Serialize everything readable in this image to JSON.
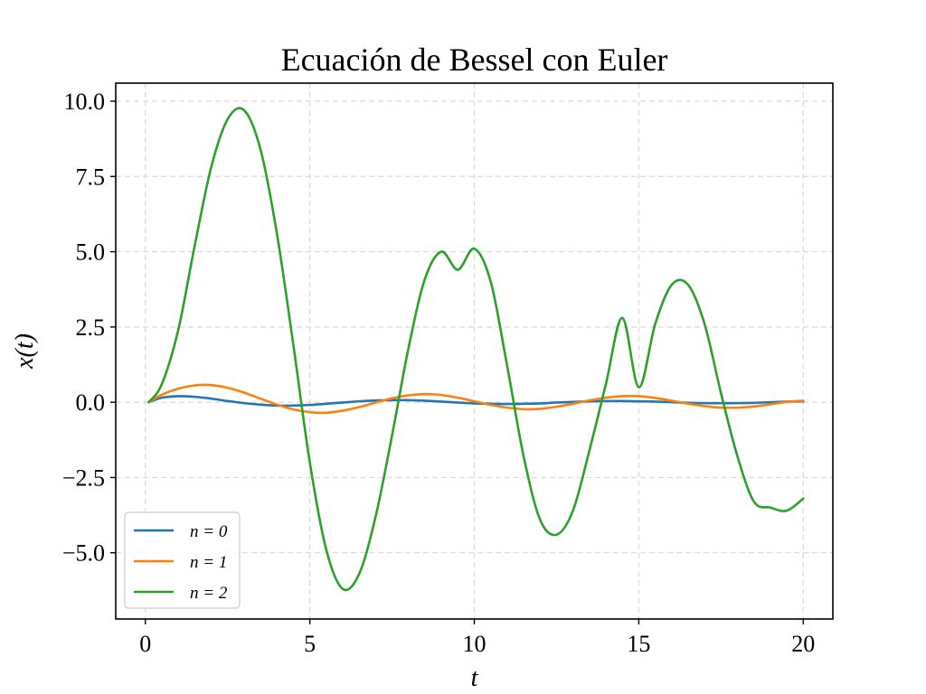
{
  "chart_data": {
    "type": "line",
    "title": "Ecuación de Bessel con Euler",
    "xlabel": "t",
    "ylabel": "x(t)",
    "xlim": [
      -0.9,
      20.9
    ],
    "ylim": [
      -7.2,
      10.6
    ],
    "xticks": [
      0,
      5,
      10,
      15,
      20
    ],
    "xtick_labels": [
      "0",
      "5",
      "10",
      "15",
      "20"
    ],
    "yticks": [
      -5.0,
      -2.5,
      0.0,
      2.5,
      5.0,
      7.5,
      10.0
    ],
    "ytick_labels": [
      "−5.0",
      "−2.5",
      "0.0",
      "2.5",
      "5.0",
      "7.5",
      "10.0"
    ],
    "grid": true,
    "legend_position": "lower-left",
    "series": [
      {
        "name": "n = 0",
        "color": "#1f77b4",
        "x": [
          0.1,
          0.5,
          1.0,
          1.5,
          2.0,
          2.5,
          3.0,
          3.5,
          4.0,
          4.5,
          5.0,
          5.5,
          6.0,
          6.5,
          7.0,
          7.5,
          8.0,
          8.5,
          9.0,
          9.5,
          10.0,
          10.5,
          11.0,
          11.5,
          12.0,
          12.5,
          13.0,
          13.5,
          14.0,
          14.5,
          15.0,
          15.5,
          16.0,
          16.5,
          17.0,
          17.5,
          18.0,
          18.5,
          19.0,
          19.5,
          20.0
        ],
        "y": [
          0.0,
          0.15,
          0.2,
          0.18,
          0.12,
          0.04,
          -0.03,
          -0.08,
          -0.11,
          -0.11,
          -0.09,
          -0.05,
          -0.01,
          0.03,
          0.06,
          0.07,
          0.07,
          0.05,
          0.02,
          -0.01,
          -0.04,
          -0.05,
          -0.06,
          -0.05,
          -0.04,
          -0.01,
          0.01,
          0.03,
          0.04,
          0.04,
          0.03,
          0.02,
          0.0,
          -0.02,
          -0.03,
          -0.03,
          -0.03,
          -0.02,
          0.0,
          0.02,
          0.03
        ]
      },
      {
        "name": "n = 1",
        "color": "#ff7f0e",
        "x": [
          0.1,
          0.5,
          1.0,
          1.5,
          2.0,
          2.5,
          3.0,
          3.5,
          4.0,
          4.5,
          5.0,
          5.5,
          6.0,
          6.5,
          7.0,
          7.5,
          8.0,
          8.5,
          9.0,
          9.5,
          10.0,
          10.5,
          11.0,
          11.5,
          12.0,
          12.5,
          13.0,
          13.5,
          14.0,
          14.5,
          15.0,
          15.5,
          16.0,
          16.5,
          17.0,
          17.5,
          18.0,
          18.5,
          19.0,
          19.5,
          20.0
        ],
        "y": [
          0.0,
          0.25,
          0.45,
          0.56,
          0.57,
          0.48,
          0.32,
          0.12,
          -0.08,
          -0.24,
          -0.33,
          -0.35,
          -0.28,
          -0.16,
          -0.01,
          0.13,
          0.23,
          0.27,
          0.24,
          0.15,
          0.03,
          -0.09,
          -0.18,
          -0.23,
          -0.22,
          -0.15,
          -0.05,
          0.06,
          0.15,
          0.2,
          0.2,
          0.14,
          0.05,
          -0.05,
          -0.13,
          -0.18,
          -0.18,
          -0.14,
          -0.07,
          0.01,
          0.05
        ]
      },
      {
        "name": "n = 2",
        "color": "#2ca02c",
        "x": [
          0.1,
          0.5,
          1.0,
          1.5,
          2.0,
          2.5,
          3.0,
          3.5,
          4.0,
          4.5,
          5.0,
          5.5,
          6.0,
          6.5,
          7.0,
          7.5,
          8.0,
          8.5,
          9.0,
          9.5,
          10.0,
          10.5,
          11.0,
          11.5,
          12.0,
          12.5,
          13.0,
          13.5,
          14.0,
          14.5,
          15.0,
          15.5,
          16.0,
          16.5,
          17.0,
          17.5,
          18.0,
          18.5,
          19.0,
          19.5,
          20.0
        ],
        "y": [
          0.0,
          0.6,
          2.4,
          5.2,
          7.8,
          9.4,
          9.7,
          8.4,
          5.6,
          1.9,
          -2.0,
          -4.9,
          -6.2,
          -5.7,
          -3.8,
          -1.1,
          1.8,
          4.1,
          5.0,
          4.4,
          5.1,
          4.0,
          1.2,
          -1.8,
          -3.9,
          -4.4,
          -3.6,
          -1.6,
          0.6,
          2.8,
          0.5,
          2.6,
          3.9,
          3.9,
          2.6,
          0.3,
          -1.8,
          -3.3,
          -3.5,
          -3.6,
          -3.2
        ]
      }
    ]
  }
}
